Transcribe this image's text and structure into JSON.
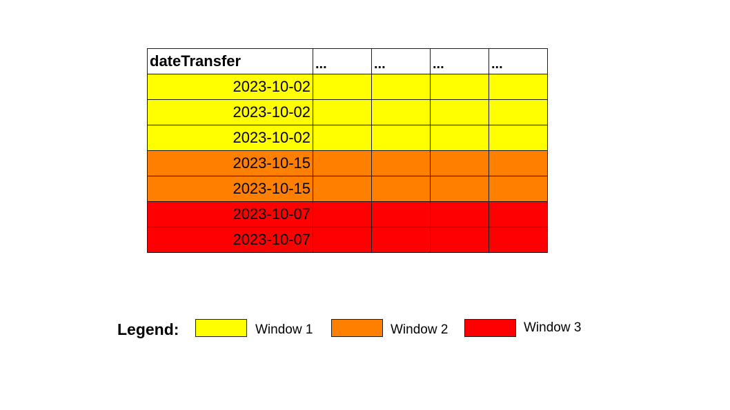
{
  "colors": {
    "window_1": "#ffff00",
    "window_2": "#ff8000",
    "window_3": "#ff0000"
  },
  "table": {
    "headers": [
      "dateTransfer",
      "...",
      "...",
      "...",
      "..."
    ],
    "rows": [
      {
        "date": "2023-10-02",
        "window": "window_1"
      },
      {
        "date": "2023-10-02",
        "window": "window_1"
      },
      {
        "date": "2023-10-02",
        "window": "window_1"
      },
      {
        "date": "2023-10-15",
        "window": "window_2"
      },
      {
        "date": "2023-10-15",
        "window": "window_2"
      },
      {
        "date": "2023-10-07",
        "window": "window_3"
      },
      {
        "date": "2023-10-07",
        "window": "window_3"
      }
    ]
  },
  "legend": {
    "title": "Legend:",
    "items": [
      {
        "label": "Window 1",
        "window": "window_1"
      },
      {
        "label": "Window 2",
        "window": "window_2"
      },
      {
        "label": "Window 3",
        "window": "window_3"
      }
    ]
  }
}
